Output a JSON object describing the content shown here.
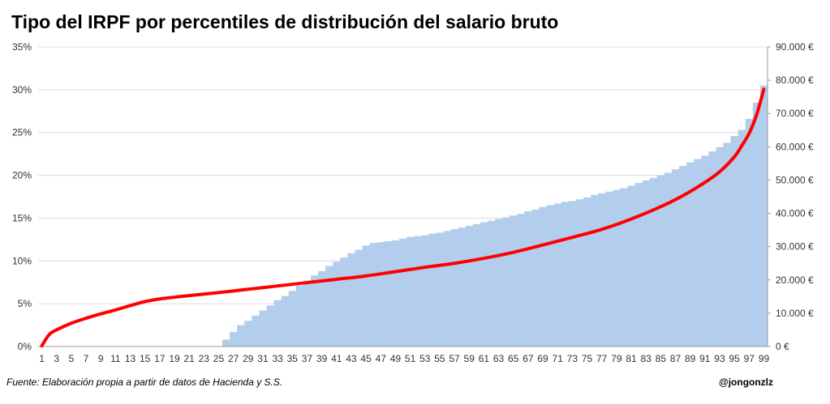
{
  "chart_data": {
    "type": "bar",
    "title": "Tipo del IRPF por percentiles de distribución del salario bruto",
    "source": "Fuente: Elaboración propia a partir de datos de Hacienda y S.S.",
    "author": "@jongonzlz",
    "x_ticks": [
      "1",
      "3",
      "5",
      "7",
      "9",
      "11",
      "13",
      "15",
      "17",
      "19",
      "21",
      "23",
      "25",
      "27",
      "29",
      "31",
      "33",
      "35",
      "37",
      "39",
      "41",
      "43",
      "45",
      "47",
      "49",
      "51",
      "53",
      "55",
      "57",
      "59",
      "61",
      "63",
      "65",
      "67",
      "69",
      "71",
      "73",
      "75",
      "77",
      "79",
      "81",
      "83",
      "85",
      "87",
      "89",
      "91",
      "93",
      "95",
      "97",
      "99"
    ],
    "y_left_ticks": [
      "0%",
      "5%",
      "10%",
      "15%",
      "20%",
      "25%",
      "30%",
      "35%"
    ],
    "y_left_lim": [
      0,
      35
    ],
    "y_right_ticks": [
      "0 €",
      "10.000 €",
      "20.000 €",
      "30.000 €",
      "40.000 €",
      "50.000 €",
      "60.000 €",
      "70.000 €",
      "80.000 €",
      "90.000 €"
    ],
    "y_right_lim": [
      0,
      90000
    ],
    "grid": true,
    "colors": {
      "bars": "#b3cdec",
      "line": "#ff0000",
      "grid": "#dcdcdc",
      "axis": "#999999"
    },
    "series": [
      {
        "type": "bar",
        "axis": "left",
        "unit": "%",
        "percentiles": [
          1,
          2,
          3,
          4,
          5,
          6,
          7,
          8,
          9,
          10,
          11,
          12,
          13,
          14,
          15,
          16,
          17,
          18,
          19,
          20,
          21,
          22,
          23,
          24,
          25,
          26,
          27,
          28,
          29,
          30,
          31,
          32,
          33,
          34,
          35,
          36,
          37,
          38,
          39,
          40,
          41,
          42,
          43,
          44,
          45,
          46,
          47,
          48,
          49,
          50,
          51,
          52,
          53,
          54,
          55,
          56,
          57,
          58,
          59,
          60,
          61,
          62,
          63,
          64,
          65,
          66,
          67,
          68,
          69,
          70,
          71,
          72,
          73,
          74,
          75,
          76,
          77,
          78,
          79,
          80,
          81,
          82,
          83,
          84,
          85,
          86,
          87,
          88,
          89,
          90,
          91,
          92,
          93,
          94,
          95,
          96,
          97,
          98,
          99
        ],
        "values": [
          0,
          0,
          0,
          0,
          0,
          0,
          0,
          0,
          0,
          0,
          0,
          0,
          0,
          0,
          0,
          0,
          0,
          0,
          0,
          0,
          0,
          0,
          0,
          0,
          0,
          0.8,
          1.7,
          2.5,
          3.0,
          3.6,
          4.2,
          4.8,
          5.4,
          5.9,
          6.5,
          7.1,
          7.7,
          8.3,
          8.8,
          9.4,
          9.9,
          10.4,
          10.9,
          11.3,
          11.8,
          12.1,
          12.2,
          12.3,
          12.4,
          12.6,
          12.8,
          12.9,
          13.0,
          13.2,
          13.3,
          13.5,
          13.7,
          13.9,
          14.1,
          14.3,
          14.5,
          14.7,
          14.9,
          15.1,
          15.3,
          15.5,
          15.8,
          16.0,
          16.3,
          16.5,
          16.7,
          16.9,
          17.0,
          17.2,
          17.4,
          17.7,
          17.9,
          18.1,
          18.3,
          18.5,
          18.8,
          19.1,
          19.4,
          19.7,
          20.0,
          20.3,
          20.7,
          21.1,
          21.5,
          21.9,
          22.3,
          22.8,
          23.3,
          23.8,
          24.6,
          25.3,
          26.6,
          28.5,
          30.5
        ]
      },
      {
        "type": "line",
        "axis": "right",
        "unit": "€",
        "percentiles": [
          1,
          2,
          3,
          5,
          7,
          9,
          11,
          13,
          15,
          17,
          21,
          25,
          29,
          33,
          37,
          41,
          45,
          49,
          53,
          57,
          61,
          65,
          69,
          73,
          77,
          81,
          85,
          88,
          91,
          93,
          95,
          96,
          97,
          98,
          99
        ],
        "values": [
          200,
          3600,
          5000,
          7000,
          8500,
          9800,
          11000,
          12300,
          13500,
          14300,
          15300,
          16200,
          17200,
          18200,
          19200,
          20200,
          21200,
          22500,
          23800,
          25000,
          26500,
          28300,
          30500,
          32800,
          35200,
          38300,
          42000,
          45300,
          49300,
          52500,
          57000,
          60300,
          64000,
          69500,
          77300
        ]
      }
    ]
  }
}
